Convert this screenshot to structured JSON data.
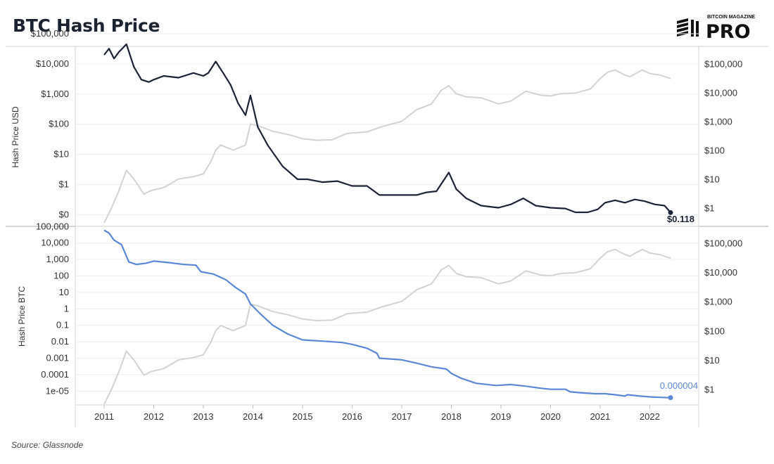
{
  "title": "BTC Hash Price",
  "logo": {
    "top_text": "BITCOIN MAGAZINE",
    "main_text": "PRO"
  },
  "source": "Source: Glassnode",
  "colors": {
    "usd_line": "#1b2335",
    "btc_line": "#5b87d6",
    "price_line": "#d3d3d3",
    "frame": "#d6d6d6"
  },
  "chart_data": [
    {
      "type": "line",
      "ylabel": "Hash Price USD",
      "yscale": "log",
      "left_ticks": [
        {
          "label": "$100,000",
          "v": 100000
        },
        {
          "label": "$10,000",
          "v": 10000
        },
        {
          "label": "$1,000",
          "v": 1000
        },
        {
          "label": "$100",
          "v": 100
        },
        {
          "label": "$10",
          "v": 10
        },
        {
          "label": "$1",
          "v": 1
        },
        {
          "label": "$0",
          "v": 0.1
        }
      ],
      "right_ticks": [
        {
          "label": "$100,000",
          "v": 100000
        },
        {
          "label": "$10,000",
          "v": 10000
        },
        {
          "label": "$1,000",
          "v": 1000
        },
        {
          "label": "$100",
          "v": 100
        },
        {
          "label": "$10",
          "v": 10
        },
        {
          "label": "$1",
          "v": 1
        }
      ],
      "series": [
        {
          "x": [
            2011.0,
            2011.1,
            2011.2,
            2011.3,
            2011.45,
            2011.6,
            2011.75,
            2011.9,
            2012.0,
            2012.2,
            2012.5,
            2012.8,
            2013.0,
            2013.1,
            2013.25,
            2013.4,
            2013.55,
            2013.7,
            2013.85,
            2013.95,
            2014.1,
            2014.3,
            2014.6,
            2014.9,
            2015.1,
            2015.4,
            2015.7,
            2016.0,
            2016.3,
            2016.55,
            2016.7,
            2017.0,
            2017.3,
            2017.5,
            2017.7,
            2017.95,
            2018.1,
            2018.3,
            2018.6,
            2018.95,
            2019.2,
            2019.45,
            2019.7,
            2020.0,
            2020.3,
            2020.5,
            2020.75,
            2020.95,
            2021.1,
            2021.3,
            2021.5,
            2021.7,
            2021.9,
            2022.1,
            2022.3,
            2022.42
          ],
          "values": [
            20000,
            32000,
            15000,
            25000,
            45000,
            8000,
            3000,
            2500,
            3000,
            4000,
            3500,
            5000,
            4000,
            5000,
            12000,
            5000,
            2000,
            500,
            200,
            900,
            80,
            20,
            4,
            1.5,
            1.5,
            1.2,
            1.3,
            0.9,
            0.9,
            0.45,
            0.45,
            0.45,
            0.45,
            0.55,
            0.6,
            2.5,
            0.7,
            0.35,
            0.2,
            0.17,
            0.22,
            0.35,
            0.2,
            0.17,
            0.16,
            0.12,
            0.12,
            0.15,
            0.25,
            0.3,
            0.25,
            0.32,
            0.28,
            0.22,
            0.2,
            0.118
          ]
        },
        {
          "x": [
            2011.0,
            2011.15,
            2011.3,
            2011.45,
            2011.6,
            2011.8,
            2011.95,
            2012.2,
            2012.5,
            2012.8,
            2013.0,
            2013.15,
            2013.25,
            2013.35,
            2013.6,
            2013.85,
            2013.95,
            2014.1,
            2014.4,
            2014.7,
            2015.0,
            2015.3,
            2015.6,
            2015.9,
            2016.3,
            2016.6,
            2017.0,
            2017.3,
            2017.6,
            2017.8,
            2017.95,
            2018.1,
            2018.3,
            2018.6,
            2018.95,
            2019.2,
            2019.5,
            2019.8,
            2020.0,
            2020.2,
            2020.5,
            2020.8,
            2021.0,
            2021.15,
            2021.3,
            2021.5,
            2021.6,
            2021.85,
            2022.0,
            2022.2,
            2022.42
          ],
          "values": [
            0.3,
            1,
            4,
            20,
            10,
            3,
            4,
            5,
            10,
            12,
            15,
            40,
            100,
            150,
            100,
            150,
            800,
            700,
            450,
            350,
            250,
            220,
            230,
            380,
            430,
            650,
            1000,
            2500,
            4000,
            12000,
            17000,
            9000,
            7000,
            6500,
            4000,
            5000,
            11000,
            8000,
            7500,
            9000,
            9500,
            13000,
            30000,
            50000,
            60000,
            40000,
            35000,
            60000,
            45000,
            40000,
            30000
          ]
        }
      ],
      "end_label": "$0.118"
    },
    {
      "type": "line",
      "ylabel": "Hash Price BTC",
      "yscale": "log",
      "left_ticks": [
        {
          "label": "100,000",
          "v": 100000
        },
        {
          "label": "10,000",
          "v": 10000
        },
        {
          "label": "1,000",
          "v": 1000
        },
        {
          "label": "100",
          "v": 100
        },
        {
          "label": "10",
          "v": 10
        },
        {
          "label": "1",
          "v": 1
        },
        {
          "label": "0.1",
          "v": 0.1
        },
        {
          "label": "0.01",
          "v": 0.01
        },
        {
          "label": "0.001",
          "v": 0.001
        },
        {
          "label": "0.0001",
          "v": 0.0001
        },
        {
          "label": "1e-05",
          "v": 1e-05
        }
      ],
      "right_ticks": [
        {
          "label": "$100,000",
          "v": 100000
        },
        {
          "label": "$10,000",
          "v": 10000
        },
        {
          "label": "$1,000",
          "v": 1000
        },
        {
          "label": "$100",
          "v": 100
        },
        {
          "label": "$10",
          "v": 10
        },
        {
          "label": "$1",
          "v": 1
        }
      ],
      "x_ticks": [
        "2011",
        "2012",
        "2013",
        "2014",
        "2015",
        "2016",
        "2017",
        "2018",
        "2019",
        "2020",
        "2021",
        "2022"
      ],
      "series": [
        {
          "x": [
            2011.0,
            2011.1,
            2011.2,
            2011.35,
            2011.5,
            2011.65,
            2011.85,
            2012.0,
            2012.3,
            2012.6,
            2012.85,
            2012.95,
            2013.2,
            2013.45,
            2013.65,
            2013.85,
            2013.95,
            2014.15,
            2014.4,
            2014.7,
            2015.0,
            2015.4,
            2015.8,
            2016.0,
            2016.3,
            2016.5,
            2016.55,
            2017.0,
            2017.3,
            2017.6,
            2017.9,
            2018.0,
            2018.2,
            2018.5,
            2018.9,
            2019.2,
            2019.5,
            2019.8,
            2020.0,
            2020.3,
            2020.4,
            2020.6,
            2020.9,
            2021.1,
            2021.3,
            2021.5,
            2021.55,
            2021.8,
            2022.0,
            2022.2,
            2022.42
          ],
          "values": [
            60000,
            40000,
            15000,
            8000,
            700,
            500,
            600,
            800,
            650,
            500,
            450,
            180,
            130,
            60,
            20,
            8,
            2,
            0.5,
            0.1,
            0.03,
            0.013,
            0.011,
            0.009,
            0.007,
            0.004,
            0.002,
            0.001,
            0.0008,
            0.0005,
            0.0003,
            0.00022,
            0.00012,
            6e-05,
            3e-05,
            2.2e-05,
            2.5e-05,
            2e-05,
            1.5e-05,
            1.3e-05,
            1.3e-05,
            9e-06,
            8e-06,
            7e-06,
            7e-06,
            6e-06,
            5e-06,
            6e-06,
            5e-06,
            4.5e-06,
            4.2e-06,
            4e-06
          ]
        },
        {
          "x": [
            2011.0,
            2011.15,
            2011.3,
            2011.45,
            2011.6,
            2011.8,
            2011.95,
            2012.2,
            2012.5,
            2012.8,
            2013.0,
            2013.15,
            2013.25,
            2013.35,
            2013.6,
            2013.85,
            2013.95,
            2014.1,
            2014.4,
            2014.7,
            2015.0,
            2015.3,
            2015.6,
            2015.9,
            2016.3,
            2016.6,
            2017.0,
            2017.3,
            2017.6,
            2017.8,
            2017.95,
            2018.1,
            2018.3,
            2018.6,
            2018.95,
            2019.2,
            2019.5,
            2019.8,
            2020.0,
            2020.2,
            2020.5,
            2020.8,
            2021.0,
            2021.15,
            2021.3,
            2021.5,
            2021.6,
            2021.85,
            2022.0,
            2022.2,
            2022.42
          ],
          "values": [
            0.3,
            1,
            4,
            20,
            10,
            3,
            4,
            5,
            10,
            12,
            15,
            40,
            100,
            150,
            100,
            150,
            800,
            700,
            450,
            350,
            250,
            220,
            230,
            380,
            430,
            650,
            1000,
            2500,
            4000,
            12000,
            17000,
            9000,
            7000,
            6500,
            4000,
            5000,
            11000,
            8000,
            7500,
            9000,
            9500,
            13000,
            30000,
            50000,
            60000,
            40000,
            35000,
            60000,
            45000,
            40000,
            30000
          ]
        }
      ],
      "end_label": "0.000004"
    }
  ]
}
